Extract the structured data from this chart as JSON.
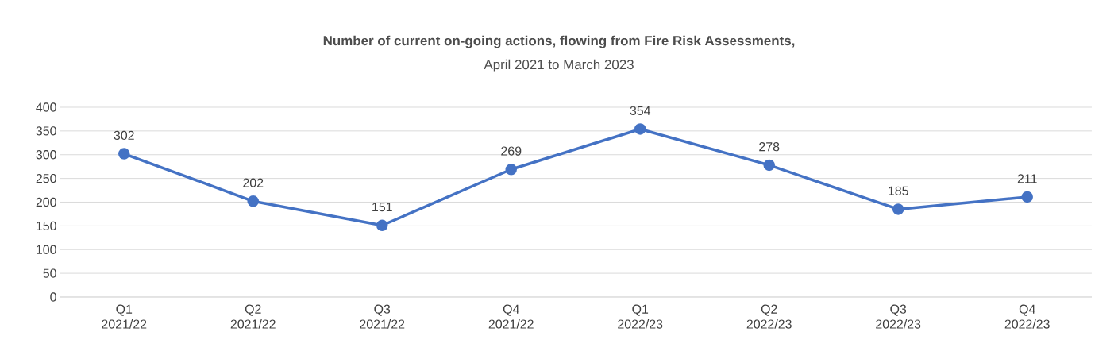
{
  "chart_data": {
    "type": "line",
    "title": "Number of current on-going actions, flowing from Fire Risk Assessments,",
    "subtitle": "April 2021 to March 2023",
    "categories": [
      "Q1 2021/22",
      "Q2 2021/22",
      "Q3 2021/22",
      "Q4 2021/22",
      "Q1 2022/23",
      "Q2 2022/23",
      "Q3 2022/23",
      "Q4 2022/23"
    ],
    "series": [
      {
        "color": "#4472c4",
        "values": [
          302,
          202,
          151,
          269,
          354,
          278,
          185,
          211
        ]
      }
    ],
    "ylim": [
      0,
      400
    ],
    "yticks": [
      0,
      50,
      100,
      150,
      200,
      250,
      300,
      350,
      400
    ],
    "grid": "y",
    "marker": "circle",
    "line_style": "solid",
    "data_labels": true
  }
}
